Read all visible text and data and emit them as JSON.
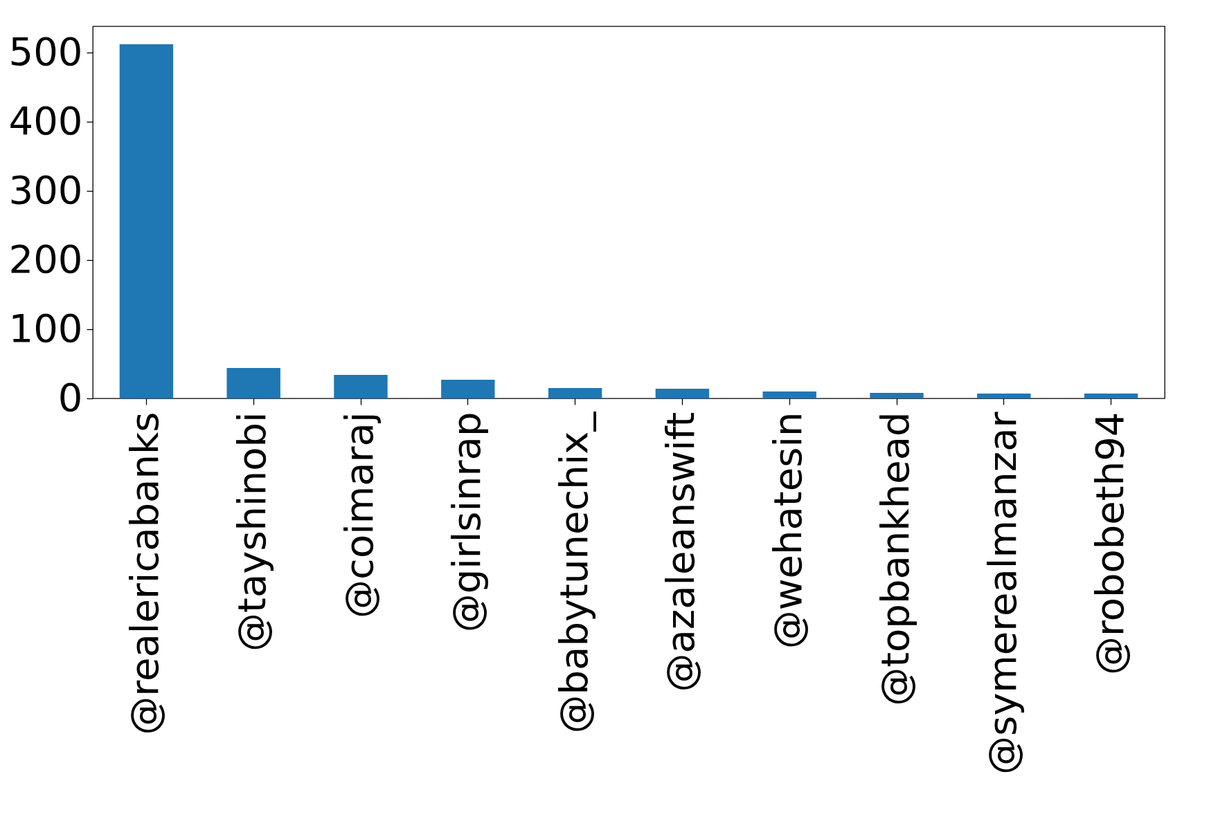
{
  "chart_data": {
    "type": "bar",
    "categories": [
      "@realericabanks",
      "@tayshinobi",
      "@coimaraj",
      "@girlsinrap",
      "@babytunechix_",
      "@azaleanswift",
      "@wehatesin",
      "@topbankhead",
      "@symerealmanzar",
      "@robobeth94"
    ],
    "values": [
      512,
      44,
      34,
      27,
      15,
      14,
      10,
      8,
      7,
      7
    ],
    "color": "#1f77b4",
    "ylim": [
      0,
      538
    ],
    "yticks": [
      0,
      100,
      200,
      300,
      400,
      500
    ],
    "grid": false
  }
}
